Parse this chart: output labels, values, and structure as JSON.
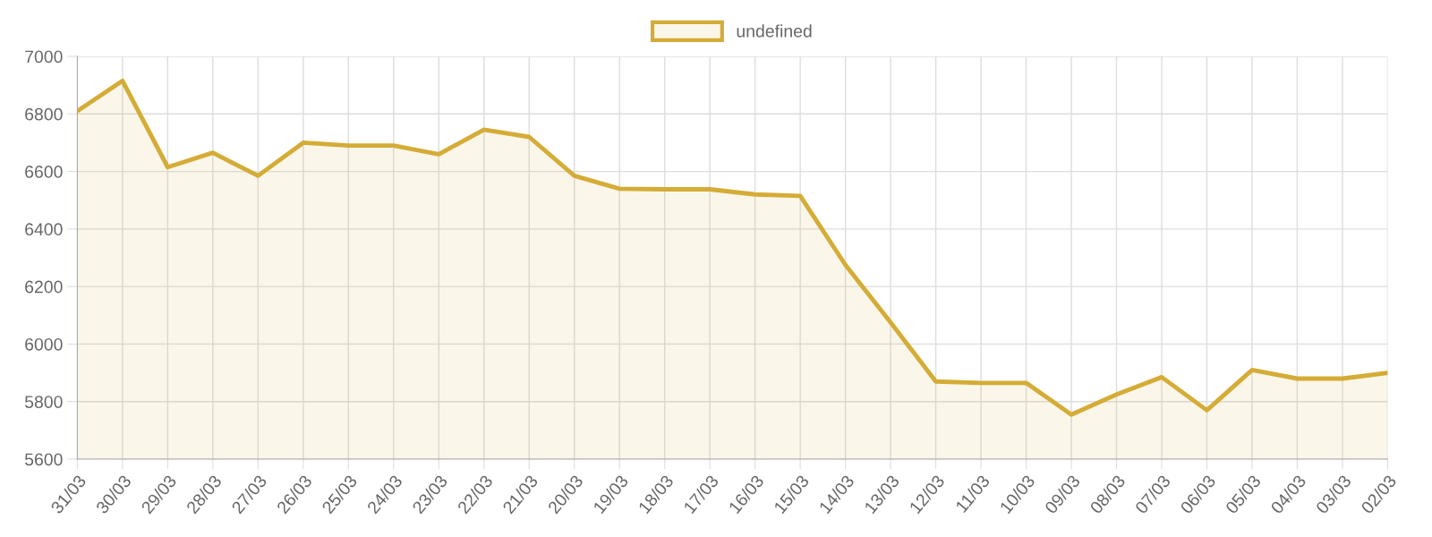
{
  "chart_data": {
    "type": "area",
    "categories": [
      "31/03",
      "30/03",
      "29/03",
      "28/03",
      "27/03",
      "26/03",
      "25/03",
      "24/03",
      "23/03",
      "22/03",
      "21/03",
      "20/03",
      "19/03",
      "18/03",
      "17/03",
      "16/03",
      "15/03",
      "14/03",
      "13/03",
      "12/03",
      "11/03",
      "10/03",
      "09/03",
      "08/03",
      "07/03",
      "06/03",
      "05/03",
      "04/03",
      "03/03",
      "02/03"
    ],
    "series": [
      {
        "name": "undefined",
        "color": "#d4ac36",
        "values": [
          6810,
          6915,
          6615,
          6665,
          6585,
          6700,
          6690,
          6690,
          6660,
          6745,
          6720,
          6585,
          6540,
          6538,
          6538,
          6520,
          6515,
          6275,
          6075,
          5870,
          5865,
          5865,
          5755,
          5825,
          5885,
          5770,
          5910,
          5880,
          5880,
          5900
        ]
      }
    ],
    "ylim": [
      5600,
      7000
    ],
    "yticks": [
      5600,
      5800,
      6000,
      6200,
      6400,
      6600,
      6800,
      7000
    ],
    "grid": true,
    "legend": "top",
    "marker": "none",
    "line_style": "solid"
  }
}
